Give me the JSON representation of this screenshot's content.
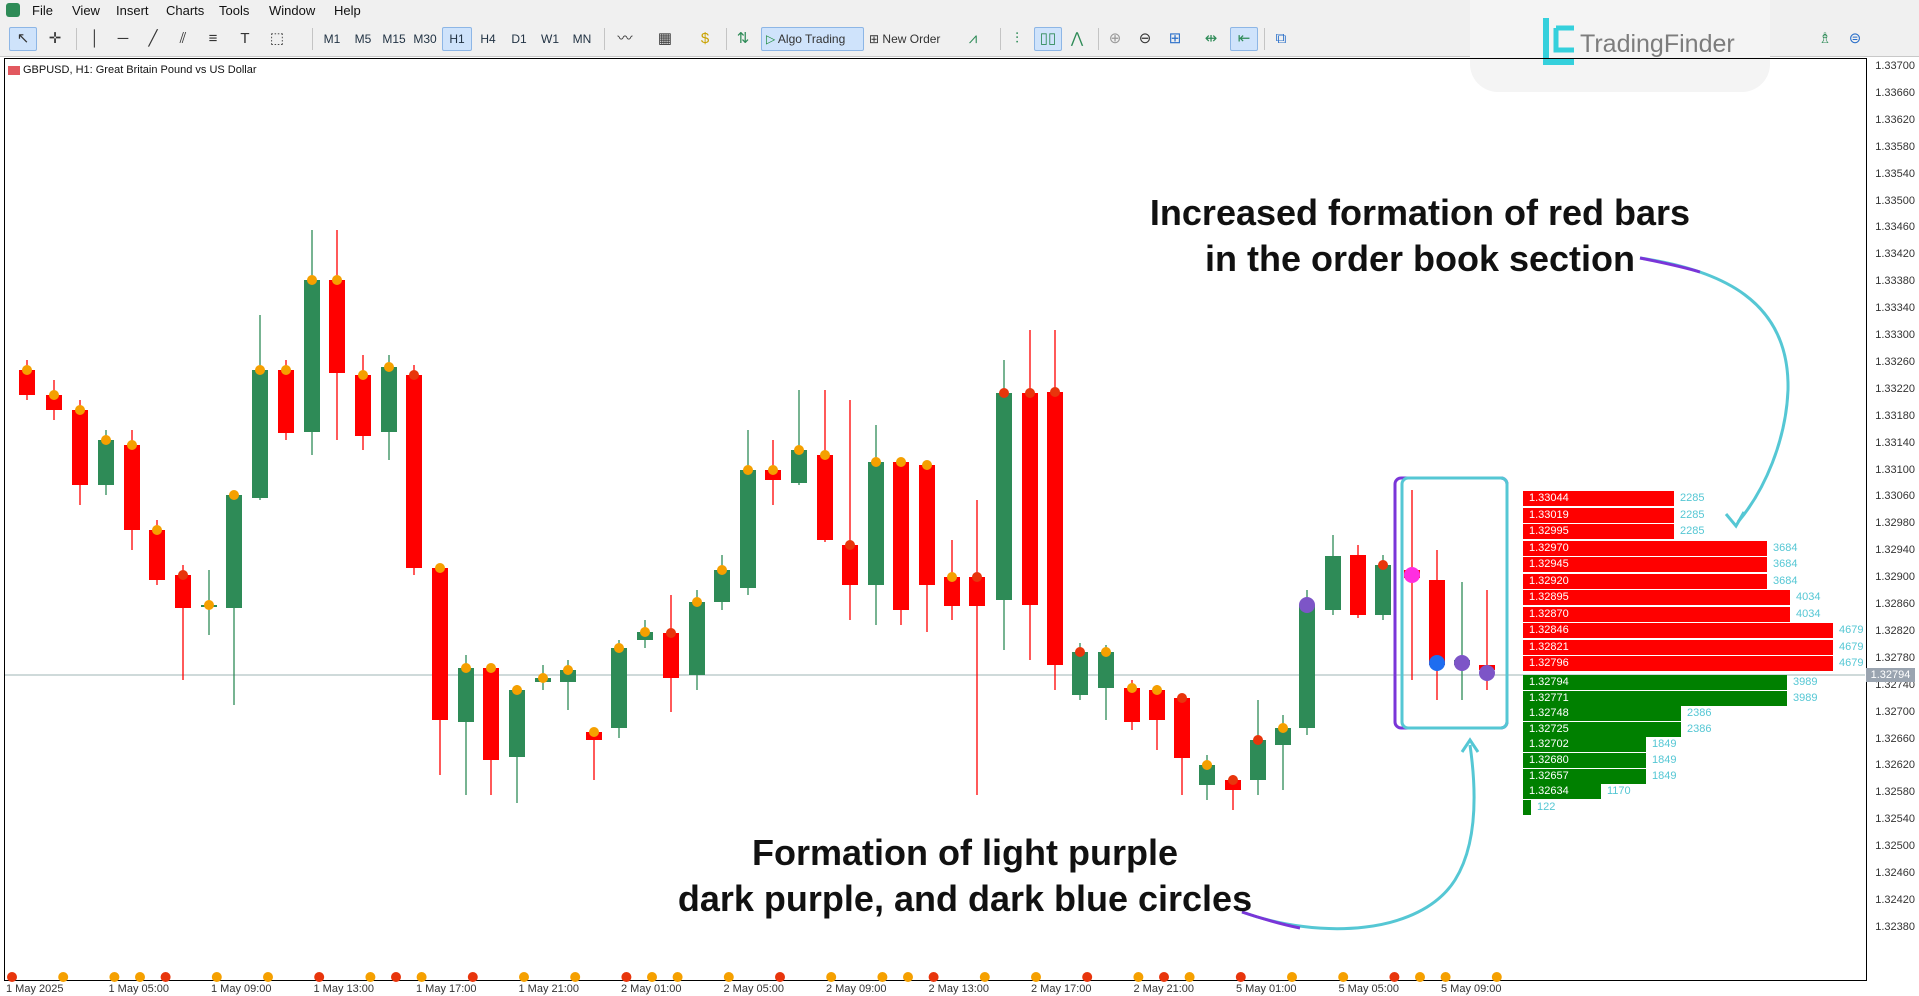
{
  "menu": [
    "File",
    "View",
    "Insert",
    "Charts",
    "Tools",
    "Window",
    "Help"
  ],
  "toolbar": {
    "timeframes": [
      "M1",
      "M5",
      "M15",
      "M30",
      "H1",
      "H4",
      "D1",
      "W1",
      "MN"
    ],
    "active_timeframe": "H1",
    "algo_trading_label": "Algo Trading",
    "new_order_label": "New Order",
    "icons": [
      "cursor-icon",
      "crosshair-icon",
      "vertical-line-icon",
      "horizontal-line-icon",
      "trendline-icon",
      "channel-icon",
      "fibonacci-icon",
      "text-icon",
      "shapes-icon",
      "indicators-icon",
      "templates-icon",
      "market-icon",
      "depth-of-market-icon",
      "new-order-icon",
      "line-chart-icon",
      "bar-chart-icon",
      "candle-chart-icon",
      "line-icon",
      "zoom-in-icon",
      "zoom-out-icon",
      "grid-icon",
      "autoscroll-icon",
      "chart-shift-icon",
      "screenshot-icon"
    ]
  },
  "brand": {
    "name": "TradingFinder",
    "color": "#35d0dc"
  },
  "chart": {
    "caption": "GBPUSD, H1:  Great Britain Pound vs US Dollar",
    "price_axis": [
      "1.33700",
      "1.33660",
      "1.33620",
      "1.33580",
      "1.33540",
      "1.33500",
      "1.33460",
      "1.33420",
      "1.33380",
      "1.33340",
      "1.33300",
      "1.33260",
      "1.33220",
      "1.33180",
      "1.33140",
      "1.33100",
      "1.33060",
      "1.32980",
      "1.32940",
      "1.32900",
      "1.32860",
      "1.32820",
      "1.32780",
      "1.32740",
      "1.32700",
      "1.32660",
      "1.32620",
      "1.32580",
      "1.32540",
      "1.32500",
      "1.32460",
      "1.32420",
      "1.32380"
    ],
    "current_price": "1.32794",
    "time_axis": [
      "1 May 2025",
      "1 May 05:00",
      "1 May 09:00",
      "1 May 13:00",
      "1 May 17:00",
      "1 May 21:00",
      "2 May 01:00",
      "2 May 05:00",
      "2 May 09:00",
      "2 May 13:00",
      "2 May 17:00",
      "2 May 21:00",
      "5 May 01:00",
      "5 May 05:00",
      "5 May 09:00"
    ],
    "colors": {
      "bull": "#2e8b57",
      "bear": "#ff0000",
      "dot_orange": "#f5a000",
      "dot_red": "#e8350c",
      "light_purple": "#ff2ee0",
      "dark_purple": "#7d55c7",
      "dark_blue": "#1e6df0"
    }
  },
  "order_book": {
    "asks": [
      {
        "price": "1.33044",
        "volume": "2285"
      },
      {
        "price": "1.33019",
        "volume": "2285"
      },
      {
        "price": "1.32995",
        "volume": "2285"
      },
      {
        "price": "1.32970",
        "volume": "3684"
      },
      {
        "price": "1.32945",
        "volume": "3684"
      },
      {
        "price": "1.32920",
        "volume": "3684"
      },
      {
        "price": "1.32895",
        "volume": "4034"
      },
      {
        "price": "1.32870",
        "volume": "4034"
      },
      {
        "price": "1.32846",
        "volume": "4679"
      },
      {
        "price": "1.32821",
        "volume": "4679"
      },
      {
        "price": "1.32796",
        "volume": "4679"
      }
    ],
    "bids": [
      {
        "price": "1.32794",
        "volume": "3989"
      },
      {
        "price": "1.32771",
        "volume": "3989"
      },
      {
        "price": "1.32748",
        "volume": "2386"
      },
      {
        "price": "1.32725",
        "volume": "2386"
      },
      {
        "price": "1.32702",
        "volume": "1849"
      },
      {
        "price": "1.32680",
        "volume": "1849"
      },
      {
        "price": "1.32657",
        "volume": "1849"
      },
      {
        "price": "1.32634",
        "volume": "1170"
      },
      {
        "price": "",
        "volume": "122"
      }
    ],
    "ask_color": "#ff0000",
    "bid_color": "#008000"
  },
  "annotations": {
    "top_line1": "Increased formation of red bars",
    "top_line2": "in the order book section",
    "bottom_line1": "Formation of light purple",
    "bottom_line2": "dark purple, and dark blue circles"
  }
}
